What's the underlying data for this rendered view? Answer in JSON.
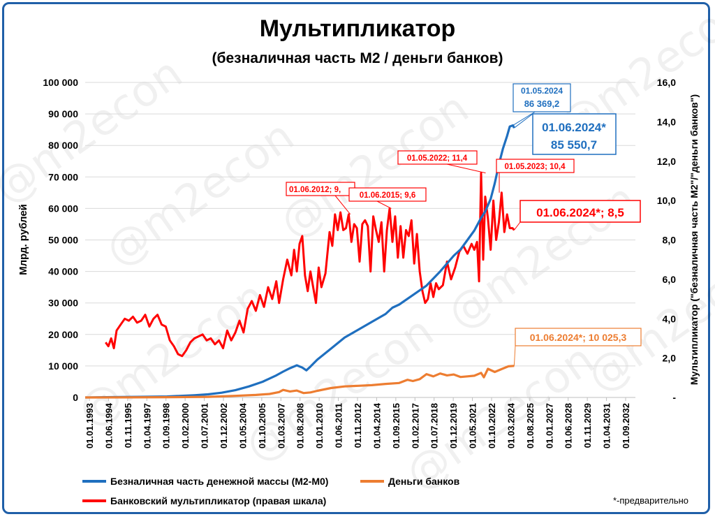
{
  "watermark": "@m2econ",
  "footnote": "*-предварительно",
  "chart_data": {
    "type": "line",
    "title": "Мультипликатор",
    "subtitle": "(безналичная часть М2 / деньги банков)",
    "ylabel": "Млрд. рублей",
    "y2label": "Мультипликатор (\"безналичная часть М2\"/\"деньги банков\")",
    "xlim": [
      1993.0,
      2033.3
    ],
    "ylim": [
      0,
      100000
    ],
    "y2lim": [
      0,
      16
    ],
    "yticks": [
      "0",
      "10 000",
      "20 000",
      "30 000",
      "40 000",
      "50 000",
      "60 000",
      "70 000",
      "80 000",
      "90 000",
      "100 000"
    ],
    "y2ticks": [
      "-",
      "2,0",
      "4,0",
      "6,0",
      "8,0",
      "10,0",
      "12,0",
      "14,0",
      "16,0"
    ],
    "xticks": [
      "01.01.1993",
      "01.06.1994",
      "01.11.1995",
      "01.04.1997",
      "01.09.1998",
      "01.02.2000",
      "01.07.2001",
      "01.12.2002",
      "01.05.2004",
      "01.10.2005",
      "01.03.2007",
      "01.08.2008",
      "01.01.2010",
      "01.06.2011",
      "01.11.2012",
      "01.04.2014",
      "01.09.2015",
      "01.02.2017",
      "01.07.2018",
      "01.12.2019",
      "01.05.2021",
      "01.10.2022",
      "01.03.2024",
      "01.08.2025",
      "01.01.2027",
      "01.06.2028",
      "01.11.2029",
      "01.04.2031",
      "01.09.2032"
    ],
    "legend_position": "bottom",
    "series": [
      {
        "name": "Безналичная часть денежной массы (М2-М0)",
        "color": "#1f6fbf",
        "axis": "left",
        "x": [
          1993.0,
          1995.0,
          1997.0,
          1999.0,
          2000.0,
          2001.0,
          2002.0,
          2003.0,
          2004.0,
          2005.0,
          2006.0,
          2007.0,
          2007.5,
          2008.0,
          2008.5,
          2008.9,
          2009.2,
          2009.5,
          2010.0,
          2011.0,
          2012.0,
          2013.0,
          2014.0,
          2015.0,
          2015.5,
          2016.0,
          2017.0,
          2018.0,
          2019.0,
          2020.0,
          2020.5,
          2021.0,
          2021.5,
          2022.0,
          2022.3,
          2022.7,
          2023.0,
          2023.3,
          2023.6,
          2023.9,
          2024.1,
          2024.33,
          2024.42
        ],
        "values": [
          0,
          100,
          200,
          300,
          500,
          700,
          1000,
          1500,
          2300,
          3500,
          5000,
          7000,
          8200,
          9300,
          10200,
          9500,
          8600,
          9800,
          12000,
          15500,
          19000,
          21500,
          24000,
          26500,
          28500,
          29500,
          32500,
          35500,
          40000,
          45000,
          47000,
          50000,
          53000,
          57000,
          59000,
          63000,
          68000,
          74000,
          79000,
          83000,
          86000,
          86369.2,
          85550.7
        ]
      },
      {
        "name": "Деньги банков",
        "color": "#ed7d31",
        "axis": "left",
        "x": [
          1993.0,
          1996.0,
          1999.0,
          2002.0,
          2004.0,
          2005.5,
          2006.5,
          2007.2,
          2007.5,
          2008.0,
          2008.5,
          2009.0,
          2009.5,
          2010.0,
          2011.0,
          2012.0,
          2013.0,
          2014.0,
          2015.0,
          2016.0,
          2016.6,
          2017.0,
          2017.5,
          2018.0,
          2018.5,
          2019.0,
          2019.5,
          2020.0,
          2020.5,
          2021.0,
          2021.5,
          2022.0,
          2022.2,
          2022.5,
          2023.0,
          2023.5,
          2024.0,
          2024.42
        ],
        "values": [
          0,
          20,
          80,
          200,
          500,
          800,
          1100,
          1700,
          2400,
          1900,
          2200,
          1400,
          1600,
          2100,
          3000,
          3500,
          3700,
          3900,
          4300,
          4600,
          5600,
          5200,
          5800,
          7400,
          6700,
          7600,
          7000,
          7300,
          6500,
          6700,
          6900,
          7800,
          6400,
          9100,
          8100,
          9000,
          9900,
          10025.3
        ]
      },
      {
        "name": "Банковский мультипликатор (правая шкала)",
        "color": "#ff0000",
        "axis": "right",
        "x": [
          1994.5,
          1994.7,
          1994.9,
          1995.1,
          1995.3,
          1995.6,
          1995.9,
          1996.2,
          1996.5,
          1996.8,
          1997.1,
          1997.4,
          1997.7,
          1998.0,
          1998.3,
          1998.6,
          1998.9,
          1999.2,
          1999.5,
          1999.8,
          2000.1,
          2000.4,
          2000.7,
          2001.0,
          2001.3,
          2001.6,
          2001.9,
          2002.2,
          2002.5,
          2002.8,
          2003.1,
          2003.4,
          2003.7,
          2004.0,
          2004.3,
          2004.6,
          2004.9,
          2005.2,
          2005.5,
          2005.8,
          2006.1,
          2006.4,
          2006.7,
          2007.0,
          2007.2,
          2007.5,
          2007.8,
          2008.1,
          2008.3,
          2008.5,
          2008.7,
          2008.9,
          2009.1,
          2009.3,
          2009.5,
          2009.7,
          2009.9,
          2010.1,
          2010.3,
          2010.6,
          2010.9,
          2011.1,
          2011.3,
          2011.5,
          2011.7,
          2011.9,
          2012.1,
          2012.3,
          2012.5,
          2012.7,
          2012.9,
          2013.1,
          2013.3,
          2013.5,
          2013.7,
          2013.9,
          2014.1,
          2014.3,
          2014.5,
          2014.7,
          2014.9,
          2015.1,
          2015.3,
          2015.5,
          2015.7,
          2015.9,
          2016.1,
          2016.3,
          2016.5,
          2016.7,
          2016.9,
          2017.1,
          2017.3,
          2017.5,
          2017.7,
          2017.9,
          2018.1,
          2018.3,
          2018.5,
          2018.7,
          2018.9,
          2019.2,
          2019.5,
          2019.8,
          2020.1,
          2020.4,
          2020.7,
          2021.0,
          2021.3,
          2021.5,
          2021.7,
          2021.85,
          2022.0,
          2022.15,
          2022.3,
          2022.5,
          2022.7,
          2022.9,
          2023.1,
          2023.3,
          2023.5,
          2023.7,
          2023.9,
          2024.1,
          2024.3,
          2024.42
        ],
        "values": [
          2.8,
          2.6,
          3.0,
          2.5,
          3.4,
          3.7,
          4.0,
          3.9,
          4.1,
          3.8,
          3.9,
          4.2,
          3.6,
          4.0,
          4.2,
          3.7,
          3.6,
          2.9,
          2.6,
          2.2,
          2.1,
          2.4,
          2.8,
          3.0,
          3.1,
          3.2,
          2.9,
          3.0,
          2.7,
          2.9,
          2.5,
          3.4,
          2.9,
          3.3,
          3.9,
          3.3,
          4.5,
          4.9,
          4.4,
          5.2,
          4.6,
          5.6,
          5.0,
          5.9,
          4.8,
          6.0,
          7.0,
          6.2,
          7.5,
          6.4,
          7.8,
          8.2,
          6.2,
          5.4,
          6.4,
          5.6,
          4.8,
          6.6,
          5.6,
          6.3,
          8.4,
          7.7,
          9.3,
          8.5,
          9.4,
          8.5,
          8.6,
          9.3,
          7.9,
          8.8,
          8.6,
          6.9,
          8.8,
          9.0,
          8.7,
          6.4,
          9.2,
          8.5,
          7.9,
          8.9,
          6.4,
          8.5,
          9.6,
          7.9,
          9.2,
          7.1,
          8.7,
          7.1,
          8.5,
          8.2,
          9.0,
          6.8,
          8.3,
          6.4,
          5.4,
          4.8,
          5.0,
          5.8,
          5.1,
          5.8,
          5.5,
          5.7,
          6.9,
          6.0,
          6.6,
          7.4,
          7.7,
          7.3,
          7.8,
          7.5,
          7.9,
          5.9,
          11.4,
          7.0,
          10.2,
          9.1,
          7.5,
          10.0,
          8.0,
          8.9,
          10.4,
          8.4,
          9.3,
          8.6,
          8.6,
          8.5
        ]
      }
    ],
    "annotations": [
      {
        "text": "01.05.2024",
        "series": 0,
        "x": 2024.33,
        "y": 86369.2,
        "color": "#1f6fbf"
      },
      {
        "text": "86 369,2",
        "series": 0,
        "x": 2024.33,
        "y": 86369.2,
        "color": "#1f6fbf"
      },
      {
        "text": "01.06.2024*",
        "series": 0,
        "x": 2024.42,
        "y": 85550.7,
        "color": "#1f6fbf"
      },
      {
        "text": "85 550,7",
        "series": 0,
        "x": 2024.42,
        "y": 85550.7,
        "color": "#1f6fbf"
      },
      {
        "text": "01.05.2022;  11,4",
        "series": 2,
        "x": 2022.33,
        "y": 11.4,
        "color": "#ff0000"
      },
      {
        "text": "01.05.2023;  10,4",
        "series": 2,
        "x": 2023.33,
        "y": 10.4,
        "color": "#ff0000"
      },
      {
        "text": "01.06.2012;  9,",
        "series": 2,
        "x": 2012.42,
        "y": 9.3,
        "color": "#ff0000"
      },
      {
        "text": "01.06.2015;  9,6",
        "series": 2,
        "x": 2015.42,
        "y": 9.6,
        "color": "#ff0000"
      },
      {
        "text": "01.06.2024*;  8,5",
        "series": 2,
        "x": 2024.42,
        "y": 8.5,
        "color": "#ff0000"
      },
      {
        "text": "01.06.2024*;  10 025,3",
        "series": 1,
        "x": 2024.42,
        "y": 10025.3,
        "color": "#ed7d31"
      }
    ]
  }
}
